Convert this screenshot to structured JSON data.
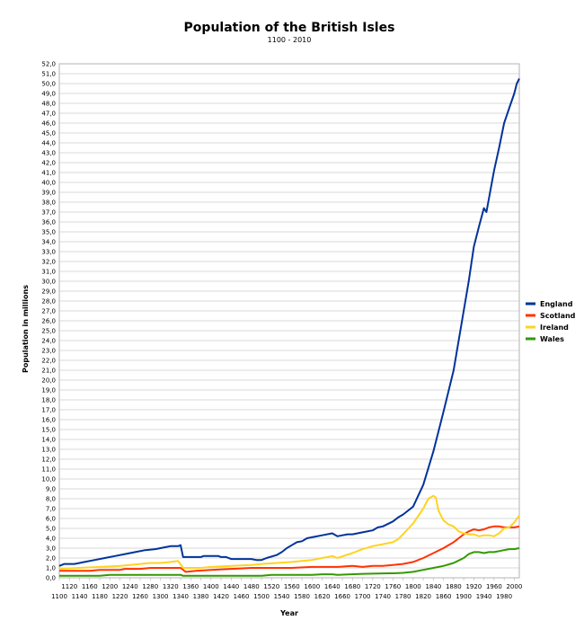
{
  "chart_data": {
    "type": "line",
    "title": "Population of the British Isles",
    "subtitle": "1100 - 2010",
    "xlabel": "Year",
    "ylabel": "Population in millions",
    "xlim": [
      1100,
      2010
    ],
    "ylim": [
      0,
      52
    ],
    "grid": true,
    "legend_position": "right",
    "x_ticks_lower": [
      1100,
      1140,
      1180,
      1220,
      1260,
      1300,
      1340,
      1380,
      1420,
      1460,
      1500,
      1540,
      1580,
      1620,
      1660,
      1700,
      1740,
      1780,
      1820,
      1860,
      1900,
      1940,
      1980
    ],
    "x_ticks_upper": [
      1120,
      1160,
      1200,
      1240,
      1280,
      1320,
      1360,
      1400,
      1440,
      1480,
      1520,
      1560,
      1600,
      1640,
      1680,
      1720,
      1760,
      1800,
      1840,
      1880,
      1920,
      1960,
      2000
    ],
    "y_tick_labels": [
      "0,0",
      "1,0",
      "2,0",
      "3,0",
      "4,0",
      "5,0",
      "6,0",
      "7,0",
      "8,0",
      "9,0",
      "10,0",
      "11,0",
      "12,0",
      "13,0",
      "14,0",
      "15,0",
      "16,0",
      "17,0",
      "18,0",
      "19,0",
      "20,0",
      "21,0",
      "22,0",
      "23,0",
      "24,0",
      "25,0",
      "26,0",
      "27,0",
      "28,0",
      "29,0",
      "30,0",
      "31,0",
      "32,0",
      "33,0",
      "34,0",
      "35,0",
      "36,0",
      "37,0",
      "38,0",
      "39,0",
      "40,0",
      "41,0",
      "42,0",
      "43,0",
      "44,0",
      "45,0",
      "46,0",
      "47,0",
      "48,0",
      "49,0",
      "50,0",
      "51,0",
      "52,0"
    ],
    "series": [
      {
        "name": "England",
        "color": "#003399",
        "points": [
          [
            1100,
            1.2
          ],
          [
            1110,
            1.4
          ],
          [
            1130,
            1.4
          ],
          [
            1150,
            1.6
          ],
          [
            1170,
            1.8
          ],
          [
            1190,
            2.0
          ],
          [
            1210,
            2.2
          ],
          [
            1230,
            2.4
          ],
          [
            1250,
            2.6
          ],
          [
            1270,
            2.8
          ],
          [
            1290,
            2.9
          ],
          [
            1310,
            3.1
          ],
          [
            1320,
            3.2
          ],
          [
            1335,
            3.2
          ],
          [
            1340,
            3.3
          ],
          [
            1345,
            2.1
          ],
          [
            1360,
            2.1
          ],
          [
            1380,
            2.1
          ],
          [
            1385,
            2.2
          ],
          [
            1400,
            2.2
          ],
          [
            1415,
            2.2
          ],
          [
            1420,
            2.1
          ],
          [
            1430,
            2.1
          ],
          [
            1440,
            1.9
          ],
          [
            1460,
            1.9
          ],
          [
            1480,
            1.9
          ],
          [
            1490,
            1.8
          ],
          [
            1500,
            1.8
          ],
          [
            1510,
            2.0
          ],
          [
            1530,
            2.3
          ],
          [
            1540,
            2.6
          ],
          [
            1550,
            3.0
          ],
          [
            1560,
            3.3
          ],
          [
            1570,
            3.6
          ],
          [
            1580,
            3.7
          ],
          [
            1590,
            4.0
          ],
          [
            1600,
            4.1
          ],
          [
            1620,
            4.3
          ],
          [
            1640,
            4.5
          ],
          [
            1650,
            4.2
          ],
          [
            1670,
            4.4
          ],
          [
            1680,
            4.4
          ],
          [
            1700,
            4.6
          ],
          [
            1720,
            4.8
          ],
          [
            1730,
            5.1
          ],
          [
            1740,
            5.2
          ],
          [
            1760,
            5.7
          ],
          [
            1770,
            6.1
          ],
          [
            1780,
            6.4
          ],
          [
            1800,
            7.2
          ],
          [
            1820,
            9.4
          ],
          [
            1840,
            12.8
          ],
          [
            1860,
            16.8
          ],
          [
            1880,
            21.0
          ],
          [
            1900,
            27.0
          ],
          [
            1910,
            30.0
          ],
          [
            1920,
            33.5
          ],
          [
            1930,
            35.5
          ],
          [
            1940,
            37.4
          ],
          [
            1945,
            37.0
          ],
          [
            1960,
            41.2
          ],
          [
            1970,
            43.5
          ],
          [
            1980,
            46.0
          ],
          [
            1990,
            47.5
          ],
          [
            2000,
            49.0
          ],
          [
            2005,
            50.0
          ],
          [
            2010,
            50.5
          ]
        ]
      },
      {
        "name": "Scotland",
        "color": "#ff3300",
        "points": [
          [
            1100,
            0.7
          ],
          [
            1160,
            0.7
          ],
          [
            1180,
            0.8
          ],
          [
            1220,
            0.8
          ],
          [
            1230,
            0.9
          ],
          [
            1260,
            0.9
          ],
          [
            1280,
            1.0
          ],
          [
            1300,
            1.0
          ],
          [
            1320,
            1.0
          ],
          [
            1340,
            1.0
          ],
          [
            1350,
            0.6
          ],
          [
            1370,
            0.7
          ],
          [
            1400,
            0.8
          ],
          [
            1440,
            0.9
          ],
          [
            1480,
            1.0
          ],
          [
            1500,
            1.0
          ],
          [
            1530,
            1.0
          ],
          [
            1560,
            1.0
          ],
          [
            1600,
            1.1
          ],
          [
            1650,
            1.1
          ],
          [
            1680,
            1.2
          ],
          [
            1700,
            1.1
          ],
          [
            1720,
            1.2
          ],
          [
            1740,
            1.2
          ],
          [
            1760,
            1.3
          ],
          [
            1780,
            1.4
          ],
          [
            1800,
            1.6
          ],
          [
            1820,
            2.0
          ],
          [
            1840,
            2.5
          ],
          [
            1860,
            3.0
          ],
          [
            1880,
            3.6
          ],
          [
            1900,
            4.4
          ],
          [
            1910,
            4.7
          ],
          [
            1920,
            4.9
          ],
          [
            1930,
            4.8
          ],
          [
            1940,
            4.9
          ],
          [
            1950,
            5.1
          ],
          [
            1960,
            5.2
          ],
          [
            1970,
            5.2
          ],
          [
            1980,
            5.1
          ],
          [
            1990,
            5.1
          ],
          [
            2000,
            5.1
          ],
          [
            2010,
            5.2
          ]
        ]
      },
      {
        "name": "Ireland",
        "color": "#ffd320",
        "points": [
          [
            1100,
            0.9
          ],
          [
            1140,
            1.0
          ],
          [
            1180,
            1.1
          ],
          [
            1220,
            1.2
          ],
          [
            1240,
            1.3
          ],
          [
            1260,
            1.4
          ],
          [
            1280,
            1.5
          ],
          [
            1300,
            1.5
          ],
          [
            1320,
            1.6
          ],
          [
            1335,
            1.7
          ],
          [
            1345,
            1.0
          ],
          [
            1360,
            1.0
          ],
          [
            1380,
            1.0
          ],
          [
            1400,
            1.1
          ],
          [
            1440,
            1.2
          ],
          [
            1480,
            1.3
          ],
          [
            1500,
            1.4
          ],
          [
            1530,
            1.5
          ],
          [
            1560,
            1.6
          ],
          [
            1580,
            1.7
          ],
          [
            1600,
            1.8
          ],
          [
            1620,
            2.0
          ],
          [
            1640,
            2.2
          ],
          [
            1650,
            2.0
          ],
          [
            1680,
            2.5
          ],
          [
            1700,
            2.9
          ],
          [
            1720,
            3.2
          ],
          [
            1740,
            3.4
          ],
          [
            1760,
            3.6
          ],
          [
            1770,
            3.9
          ],
          [
            1780,
            4.4
          ],
          [
            1800,
            5.5
          ],
          [
            1820,
            7.0
          ],
          [
            1830,
            8.0
          ],
          [
            1840,
            8.3
          ],
          [
            1845,
            8.1
          ],
          [
            1850,
            6.8
          ],
          [
            1860,
            5.8
          ],
          [
            1870,
            5.4
          ],
          [
            1880,
            5.2
          ],
          [
            1890,
            4.7
          ],
          [
            1900,
            4.5
          ],
          [
            1910,
            4.4
          ],
          [
            1920,
            4.4
          ],
          [
            1930,
            4.2
          ],
          [
            1940,
            4.3
          ],
          [
            1950,
            4.3
          ],
          [
            1960,
            4.2
          ],
          [
            1970,
            4.5
          ],
          [
            1980,
            5.0
          ],
          [
            1990,
            5.1
          ],
          [
            2000,
            5.6
          ],
          [
            2010,
            6.3
          ]
        ]
      },
      {
        "name": "Wales",
        "color": "#339900",
        "points": [
          [
            1100,
            0.2
          ],
          [
            1180,
            0.2
          ],
          [
            1200,
            0.3
          ],
          [
            1280,
            0.3
          ],
          [
            1300,
            0.3
          ],
          [
            1340,
            0.3
          ],
          [
            1345,
            0.2
          ],
          [
            1400,
            0.2
          ],
          [
            1500,
            0.2
          ],
          [
            1520,
            0.3
          ],
          [
            1600,
            0.3
          ],
          [
            1620,
            0.35
          ],
          [
            1640,
            0.35
          ],
          [
            1650,
            0.3
          ],
          [
            1700,
            0.4
          ],
          [
            1750,
            0.45
          ],
          [
            1760,
            0.45
          ],
          [
            1780,
            0.5
          ],
          [
            1800,
            0.6
          ],
          [
            1820,
            0.8
          ],
          [
            1840,
            1.0
          ],
          [
            1860,
            1.2
          ],
          [
            1880,
            1.5
          ],
          [
            1900,
            2.0
          ],
          [
            1910,
            2.4
          ],
          [
            1920,
            2.6
          ],
          [
            1930,
            2.6
          ],
          [
            1940,
            2.5
          ],
          [
            1950,
            2.6
          ],
          [
            1960,
            2.6
          ],
          [
            1970,
            2.7
          ],
          [
            1980,
            2.8
          ],
          [
            1990,
            2.9
          ],
          [
            2000,
            2.9
          ],
          [
            2010,
            3.0
          ]
        ]
      }
    ]
  }
}
